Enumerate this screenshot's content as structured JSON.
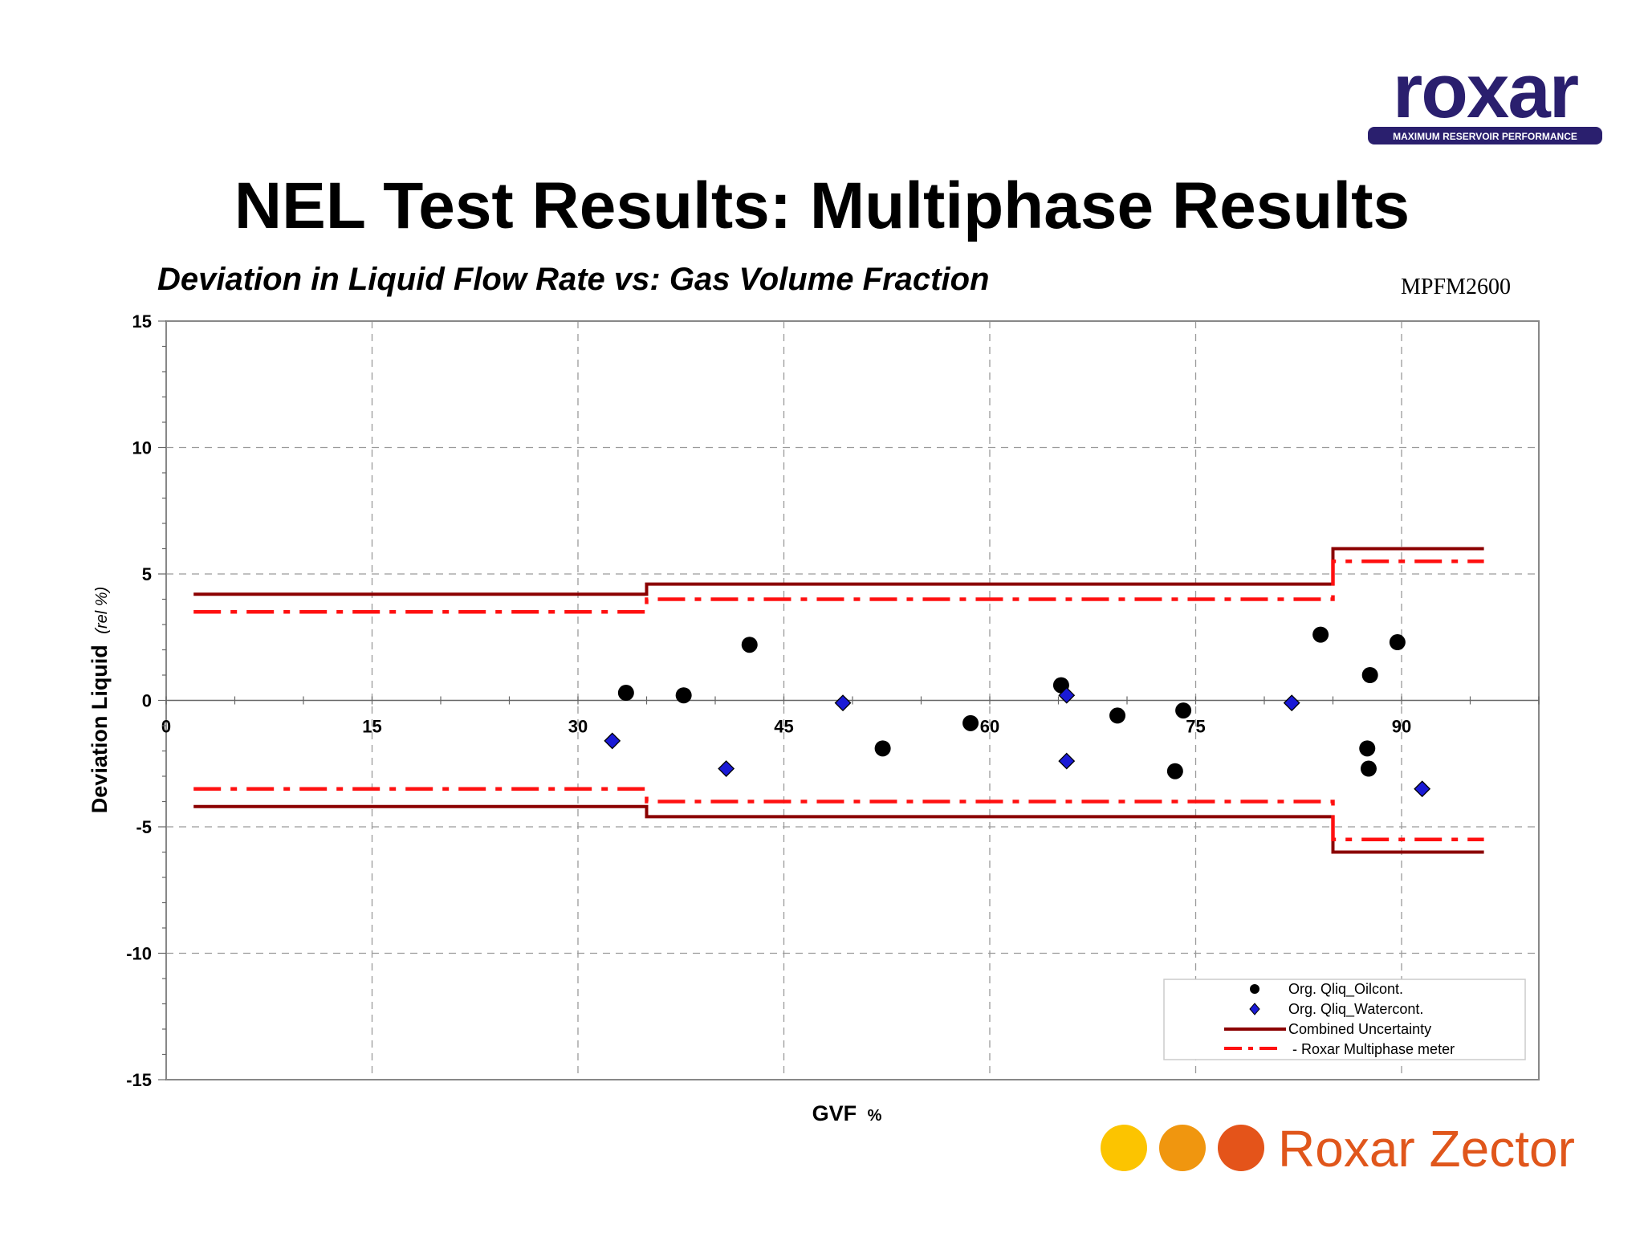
{
  "header": {
    "title": "NEL Test Results: Multiphase Results",
    "subtitle": "Deviation in Liquid Flow Rate vs: Gas Volume Fraction",
    "model": "MPFM2600"
  },
  "logos": {
    "top_wordmark": "roxar",
    "top_tagline": "MAXIMUM RESERVOIR PERFORMANCE",
    "bottom_wordmark": "Roxar Zector"
  },
  "colors": {
    "oil_marker": "#000000",
    "water_marker": "#1a1ad6",
    "combined_uncertainty": "#8b0000",
    "meter_uncertainty": "#ff1010",
    "logo_purple": "#2a1f6e",
    "zector_text": "#e0561b",
    "dot_yellow": "#fcc400",
    "dot_orange": "#f0960f",
    "dot_red": "#e4541a"
  },
  "chart_data": {
    "type": "scatter",
    "xlabel": "GVF",
    "xlabel_unit": "%",
    "ylabel": "Deviation Liquid",
    "ylabel_unit": "(rel %)",
    "xlim": [
      0,
      100
    ],
    "ylim": [
      -15,
      15
    ],
    "xticks": [
      "0",
      "15",
      "30",
      "45",
      "60",
      "75",
      "90"
    ],
    "yticks": [
      "15",
      "10",
      "5",
      "0",
      "-5",
      "-10",
      "-15"
    ],
    "grid": true,
    "legend_position": "bottom-right",
    "series": [
      {
        "name": "Org. Qliq_Oilcont.",
        "marker": "circle",
        "x": [
          33.5,
          37.7,
          42.5,
          52.2,
          58.6,
          65.2,
          69.3,
          73.5,
          74.1,
          84.1,
          87.5,
          87.7,
          89.7,
          87.6
        ],
        "y": [
          0.3,
          0.2,
          2.2,
          -1.9,
          -0.9,
          0.6,
          -0.6,
          -2.8,
          -0.4,
          2.6,
          -1.9,
          1.0,
          2.3,
          -2.7
        ]
      },
      {
        "name": "Org. Qliq_Watercont.",
        "marker": "diamond",
        "x": [
          32.5,
          40.8,
          49.3,
          65.6,
          65.6,
          82.0,
          91.5
        ],
        "y": [
          -1.6,
          -2.7,
          -0.1,
          0.2,
          -2.4,
          -0.1,
          -3.5
        ]
      },
      {
        "name": "Combined Uncertainty",
        "style": "solid",
        "x": [
          2,
          35,
          35,
          85,
          85,
          96
        ],
        "upper": [
          4.2,
          4.2,
          4.6,
          4.6,
          6.0,
          6.0
        ],
        "lower": [
          -4.2,
          -4.2,
          -4.6,
          -4.6,
          -6.0,
          -6.0
        ]
      },
      {
        "name": "- Roxar Multiphase meter",
        "style": "dash-dot",
        "x": [
          2,
          35,
          35,
          85,
          85,
          96
        ],
        "upper": [
          3.5,
          3.5,
          4.0,
          4.0,
          5.5,
          5.5
        ],
        "lower": [
          -3.5,
          -3.5,
          -4.0,
          -4.0,
          -5.5,
          -5.5
        ]
      }
    ]
  }
}
